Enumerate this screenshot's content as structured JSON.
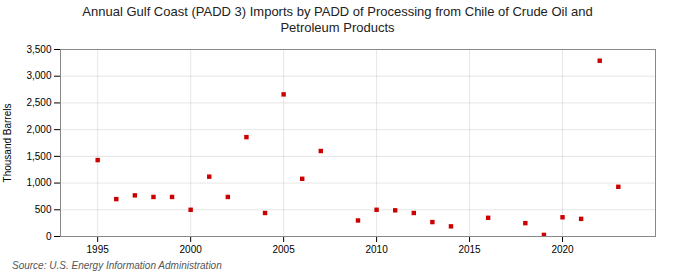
{
  "chart_data": {
    "type": "scatter",
    "title": "Annual Gulf Coast (PADD 3) Imports by PADD of Processing from Chile of Crude Oil and\nPetroleum Products",
    "ylabel": "Thousand Barrels",
    "source": "Source: U.S. Energy Information Administration",
    "x": [
      1995,
      1996,
      1997,
      1998,
      1999,
      2000,
      2001,
      2002,
      2003,
      2004,
      2005,
      2006,
      2007,
      2009,
      2010,
      2011,
      2012,
      2013,
      2014,
      2016,
      2018,
      2019,
      2020,
      2021,
      2022,
      2023
    ],
    "values": [
      1430,
      700,
      770,
      740,
      740,
      500,
      1120,
      740,
      1860,
      440,
      2660,
      1080,
      1600,
      300,
      500,
      490,
      440,
      270,
      190,
      350,
      250,
      30,
      360,
      330,
      3290,
      930
    ],
    "color": "#cc0000",
    "marker": "square",
    "xlim": [
      1993,
      2025
    ],
    "ylim": [
      0,
      3500
    ],
    "xticks": [
      1995,
      2000,
      2005,
      2010,
      2015,
      2020
    ],
    "yticks": [
      0,
      500,
      {
        "value": 1000,
        "label": "1,000"
      },
      {
        "value": 1500,
        "label": "1,500"
      },
      {
        "value": 2000,
        "label": "2,000"
      },
      {
        "value": 2500,
        "label": "2,500"
      },
      {
        "value": 3000,
        "label": "3,000"
      },
      {
        "value": 3500,
        "label": "3,500"
      }
    ],
    "grid": true
  }
}
